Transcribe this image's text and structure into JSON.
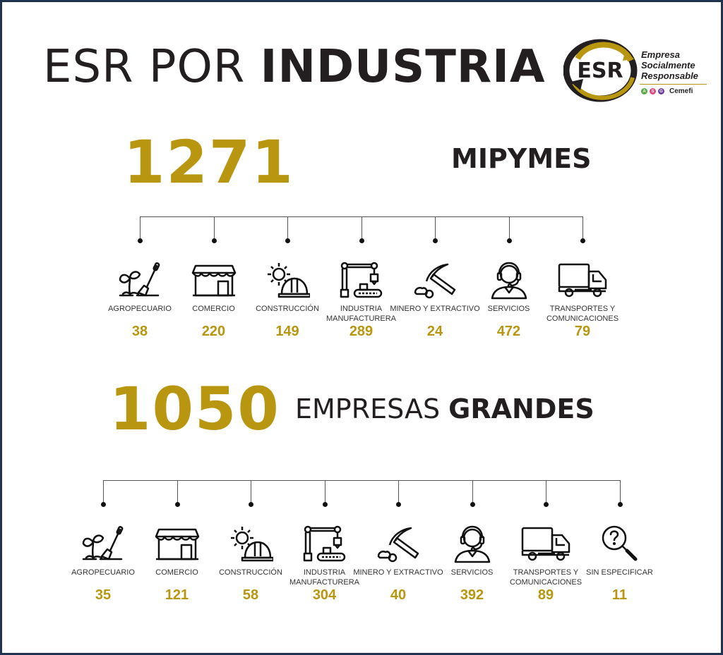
{
  "title": {
    "light": "ESR POR ",
    "bold": "INDUSTRIA"
  },
  "logo": {
    "mark": "ESR",
    "line1": "Empresa",
    "line2": "Socialmente",
    "line3": "Responsable",
    "badges": [
      "A",
      "S",
      "G"
    ],
    "org": "Cemefi",
    "colors": {
      "gold": "#b8960f",
      "dark": "#231f20",
      "a": "#5aa846",
      "s": "#e0457b",
      "g": "#6a3fa0"
    }
  },
  "mipymes": {
    "total": "1271",
    "label": "MIPYMES"
  },
  "grandes": {
    "total": "1050",
    "label_light": "EMPRESAS ",
    "label_bold": "GRANDES"
  },
  "colors": {
    "accent": "#b8960f",
    "text": "#231f20",
    "border": "#1f3350"
  },
  "chart_data": [
    {
      "type": "table",
      "title": "ESR por industria - MIPYMES",
      "total": 1271,
      "categories": [
        "Agropecuario",
        "Comercio",
        "Construcción",
        "Industria Manufacturera",
        "Minero y Extractivo",
        "Servicios",
        "Transportes y Comunicaciones"
      ],
      "values": [
        38,
        220,
        149,
        289,
        24,
        472,
        79
      ]
    },
    {
      "type": "table",
      "title": "ESR por industria - Empresas Grandes",
      "total": 1050,
      "categories": [
        "Agropecuario",
        "Comercio",
        "Construcción",
        "Industria Manufacturera",
        "Minero y Extractivo",
        "Servicios",
        "Transportes y Comunicaciones",
        "Sin Especificar"
      ],
      "values": [
        35,
        121,
        58,
        304,
        40,
        392,
        89,
        11
      ]
    }
  ],
  "row1": [
    {
      "icon": "agro",
      "label": "AGROPECUARIO",
      "value": "38"
    },
    {
      "icon": "store",
      "label": "COMERCIO",
      "value": "220"
    },
    {
      "icon": "construction",
      "label": "CONSTRUCCIÓN",
      "value": "149"
    },
    {
      "icon": "factory",
      "label": "INDUSTRIA MANUFACTURERA",
      "value": "289"
    },
    {
      "icon": "pickaxe",
      "label": "MINERO Y EXTRACTIVO",
      "value": "24"
    },
    {
      "icon": "headset",
      "label": "SERVICIOS",
      "value": "472"
    },
    {
      "icon": "truck",
      "label": "TRANSPORTES Y COMUNICACIONES",
      "value": "79"
    }
  ],
  "row2": [
    {
      "icon": "agro",
      "label": "AGROPECUARIO",
      "value": "35"
    },
    {
      "icon": "store",
      "label": "COMERCIO",
      "value": "121"
    },
    {
      "icon": "construction",
      "label": "CONSTRUCCIÓN",
      "value": "58"
    },
    {
      "icon": "factory",
      "label": "INDUSTRIA MANUFACTURERA",
      "value": "304"
    },
    {
      "icon": "pickaxe",
      "label": "MINERO Y EXTRACTIVO",
      "value": "40"
    },
    {
      "icon": "headset",
      "label": "SERVICIOS",
      "value": "392"
    },
    {
      "icon": "truck",
      "label": "TRANSPORTES Y COMUNICACIONES",
      "value": "89"
    },
    {
      "icon": "search-question",
      "label": "SIN ESPECIFICAR",
      "value": "11"
    }
  ]
}
